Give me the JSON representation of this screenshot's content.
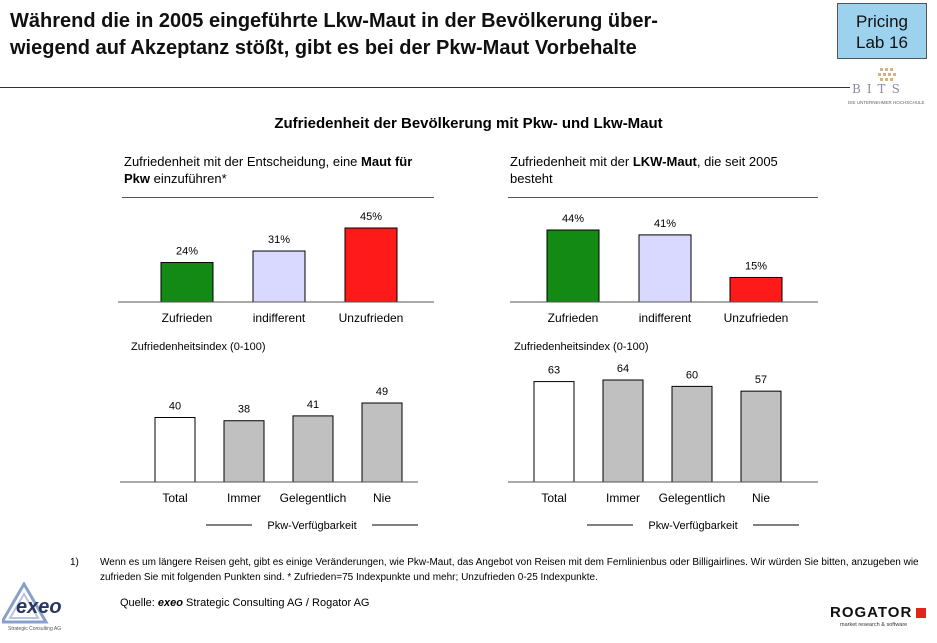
{
  "header": {
    "title_line1": "Während die in 2005 eingeführte Lkw-Maut in der Bevölkerung über-",
    "title_line2": "wiegend auf Akzeptanz stößt, gibt es bei der Pkw-Maut Vorbehalte",
    "badge_line1": "Pricing",
    "badge_line2": "Lab 16",
    "bits_logo_text": "BITS",
    "bits_tagline": "DIE UNTERNEHMER HOCHSCHULE"
  },
  "section_heading": "Zufriedenheit der Bevölkerung mit Pkw- und Lkw-Maut",
  "left": {
    "subtitle_part1": "Zufriedenheit mit der Entscheidung, eine ",
    "subtitle_bold": "Maut für Pkw",
    "subtitle_part2": " einzuführen*",
    "index_label": "Zufriedenheitsindex  (0-100)",
    "group_label": "Pkw-Verfügbarkeit"
  },
  "right": {
    "subtitle_part1": "Zufriedenheit mit der ",
    "subtitle_bold": "LKW-Maut",
    "subtitle_part2": ", die seit 2005 besteht",
    "index_label": "Zufriedenheitsindex  (0-100)",
    "group_label": "Pkw-Verfügbarkeit"
  },
  "chart_data": [
    {
      "id": "pkw-satisfaction",
      "type": "bar",
      "categories": [
        "Zufrieden",
        "indifferent",
        "Unzufrieden"
      ],
      "values": [
        24,
        31,
        45
      ],
      "value_labels": [
        "24%",
        "31%",
        "45%"
      ],
      "colors": [
        "#138a13",
        "#d9d9ff",
        "#ff1a1a"
      ],
      "ylim": [
        0,
        45
      ]
    },
    {
      "id": "lkw-satisfaction",
      "type": "bar",
      "categories": [
        "Zufrieden",
        "indifferent",
        "Unzufrieden"
      ],
      "values": [
        44,
        41,
        15
      ],
      "value_labels": [
        "44%",
        "41%",
        "15%"
      ],
      "colors": [
        "#138a13",
        "#d9d9ff",
        "#ff1a1a"
      ],
      "ylim": [
        0,
        44
      ]
    },
    {
      "id": "pkw-index",
      "type": "bar",
      "categories": [
        "Total",
        "Immer",
        "Gelegentlich",
        "Nie"
      ],
      "values": [
        40,
        38,
        41,
        49
      ],
      "value_labels": [
        "40",
        "38",
        "41",
        "49"
      ],
      "colors": [
        "#ffffff",
        "#c0c0c0",
        "#c0c0c0",
        "#c0c0c0"
      ],
      "ylim": [
        0,
        49
      ]
    },
    {
      "id": "lkw-index",
      "type": "bar",
      "categories": [
        "Total",
        "Immer",
        "Gelegentlich",
        "Nie"
      ],
      "values": [
        63,
        64,
        60,
        57
      ],
      "value_labels": [
        "63",
        "64",
        "60",
        "57"
      ],
      "colors": [
        "#ffffff",
        "#c0c0c0",
        "#c0c0c0",
        "#c0c0c0"
      ],
      "ylim": [
        0,
        64
      ]
    }
  ],
  "footnote": {
    "marker": "1)",
    "text": "Wenn es um längere Reisen geht, gibt es einige Veränderungen, wie Pkw-Maut, das Angebot von Reisen mit dem Fernlinienbus oder Billigairlines. Wir würden Sie bitten, anzugeben wie zufrieden Sie mit folgenden Punkten sind. * Zufrieden=75 Indexpunkte und mehr; Unzufrieden 0-25 Indexpunkte."
  },
  "source": {
    "prefix": "Quelle: ",
    "brand": "exeo",
    "rest": " Strategic Consulting AG / Rogator AG"
  },
  "logos": {
    "exeo_text": "exeo",
    "exeo_tagline": "Strategic Consulting AG",
    "rogator_text": "ROGATOR",
    "rogator_tagline": "market research & software"
  }
}
